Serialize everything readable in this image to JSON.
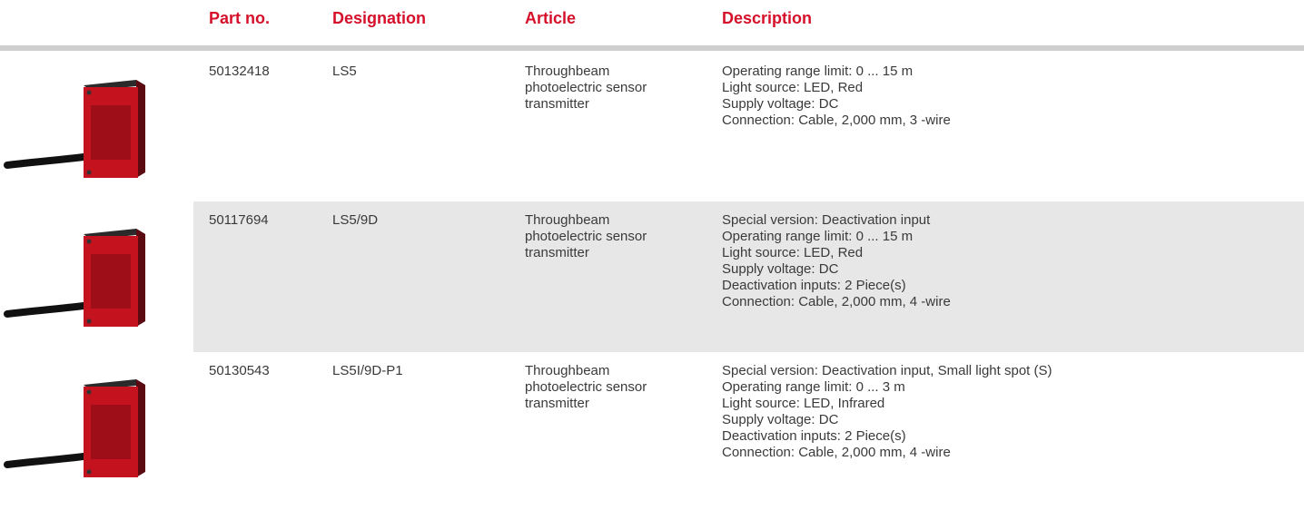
{
  "table": {
    "columns": [
      "Part no.",
      "Designation",
      "Article",
      "Description"
    ],
    "rows": [
      {
        "part_no": "50132418",
        "designation": "LS5",
        "article": "Throughbeam photoelectric sensor transmitter",
        "description": [
          "Operating range limit: 0 ... 15 m",
          "Light source: LED, Red",
          "Supply voltage: DC",
          "Connection: Cable, 2,000 mm, 3 -wire"
        ]
      },
      {
        "part_no": "50117694",
        "designation": "LS5/9D",
        "article": "Throughbeam photoelectric sensor transmitter",
        "description": [
          "Special version: Deactivation input",
          "Operating range limit: 0 ... 15 m",
          "Light source: LED, Red",
          "Supply voltage: DC",
          "Deactivation inputs: 2 Piece(s)",
          "Connection: Cable, 2,000 mm, 4 -wire"
        ]
      },
      {
        "part_no": "50130543",
        "designation": "LS5I/9D-P1",
        "article": "Throughbeam photoelectric sensor transmitter",
        "description": [
          "Special version: Deactivation input, Small light spot (S)",
          "Operating range limit: 0 ... 3 m",
          "Light source: LED, Infrared",
          "Supply voltage: DC",
          "Deactivation inputs: 2 Piece(s)",
          "Connection: Cable, 2,000 mm, 4 -wire"
        ]
      }
    ]
  }
}
